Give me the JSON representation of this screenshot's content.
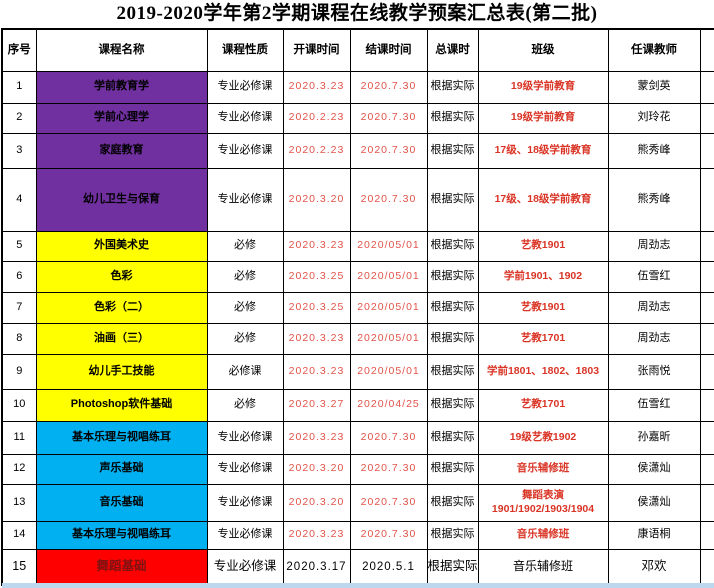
{
  "page_title": "2019-2020学年第2学期课程在线教学预案汇总表(第二批)",
  "table": {
    "columns": [
      "序号",
      "课程名称",
      "课程性质",
      "开课时间",
      "结课时间",
      "总课时",
      "班级",
      "任课教师"
    ],
    "rows": [
      {
        "no": "1",
        "course": "学前教育学",
        "group": "purple",
        "nature": "专业必修课",
        "start": "2020.3.23",
        "end": "2020.7.30",
        "hours": "根据实际",
        "class_name": "19级学前教育",
        "teacher": "蒙剑英"
      },
      {
        "no": "2",
        "course": "学前心理学",
        "group": "purple",
        "nature": "专业必修课",
        "start": "2020.2.23",
        "end": "2020.7.30",
        "hours": "根据实际",
        "class_name": "19级学前教育",
        "teacher": "刘玲花"
      },
      {
        "no": "3",
        "course": "家庭教育",
        "group": "purple",
        "nature": "专业必修课",
        "start": "2020.2.23",
        "end": "2020.7.30",
        "hours": "根据实际",
        "class_name": "17级、18级学前教育",
        "teacher": "熊秀峰"
      },
      {
        "no": "4",
        "course": "幼儿卫生与保育",
        "group": "purple",
        "nature": "专业必修课",
        "start": "2020.3.20",
        "end": "2020.7.30",
        "hours": "根据实际",
        "class_name": "17级、18级学前教育",
        "teacher": "熊秀峰"
      },
      {
        "no": "5",
        "course": "外国美术史",
        "group": "yellow",
        "nature": "必修",
        "start": "2020.3.23",
        "end": "2020/05/01",
        "hours": "根据实际",
        "class_name": "艺教1901",
        "teacher": "周劲志"
      },
      {
        "no": "6",
        "course": "色彩",
        "group": "yellow",
        "nature": "必修",
        "start": "2020.3.25",
        "end": "2020/05/01",
        "hours": "根据实际",
        "class_name": "学前1901、1902",
        "teacher": "伍雪红"
      },
      {
        "no": "7",
        "course": "色彩（二）",
        "group": "yellow",
        "nature": "必修",
        "start": "2020.3.25",
        "end": "2020/05/01",
        "hours": "根据实际",
        "class_name": "艺教1901",
        "teacher": "周劲志"
      },
      {
        "no": "8",
        "course": "油画（三）",
        "group": "yellow",
        "nature": "必修",
        "start": "2020.3.23",
        "end": "2020/05/01",
        "hours": "根据实际",
        "class_name": "艺教1701",
        "teacher": "周劲志"
      },
      {
        "no": "9",
        "course": "幼儿手工技能",
        "group": "yellow",
        "nature": "必修课",
        "start": "2020.3.23",
        "end": "2020/05/01",
        "hours": "根据实际",
        "class_name": "学前1801、1802、1803",
        "teacher": "张雨悦"
      },
      {
        "no": "10",
        "course": "Photoshop软件基础",
        "group": "yellow",
        "nature": "必修",
        "start": "2020.3.27",
        "end": "2020/04/25",
        "hours": "根据实际",
        "class_name": "艺教1701",
        "teacher": "伍雪红"
      },
      {
        "no": "11",
        "course": "基本乐理与视唱练耳",
        "group": "blue",
        "nature": "专业必修课",
        "start": "2020.3.23",
        "end": "2020.7.30",
        "hours": "根据实际",
        "class_name": "19级艺教1902",
        "teacher": "孙嘉昕"
      },
      {
        "no": "12",
        "course": "声乐基础",
        "group": "blue",
        "nature": "专业必修课",
        "start": "2020.3.20",
        "end": "2020.7.30",
        "hours": "根据实际",
        "class_name": "音乐辅修班",
        "teacher": "侯潇灿"
      },
      {
        "no": "13",
        "course": "音乐基础",
        "group": "blue",
        "nature": "专业必修课",
        "start": "2020.3.20",
        "end": "2020.7.30",
        "hours": "根据实际",
        "class_name": "舞蹈表演\n1901/1902/1903/1904",
        "teacher": "侯潇灿"
      },
      {
        "no": "14",
        "course": "基本乐理与视唱练耳",
        "group": "blue",
        "nature": "专业必修课",
        "start": "2020.3.23",
        "end": "2020.7.30",
        "hours": "根据实际",
        "class_name": "音乐辅修班",
        "teacher": "康语桐"
      },
      {
        "no": "15",
        "course": "舞蹈基础",
        "group": "red",
        "nature": "专业必修课",
        "start": "2020.3.17",
        "end": "2020.5.1",
        "hours": "根据实际",
        "class_name": "音乐辅修班",
        "teacher": "邓欢"
      }
    ]
  },
  "colors": {
    "purple": "#7030A0",
    "yellow": "#FFFF00",
    "blue": "#00B0F0",
    "red": "#FF0000",
    "date_red": "#E25349",
    "class_red": "#D93425",
    "dark_red": "#7E1212",
    "black": "#000000",
    "bottom_strip": "#BDD7EE"
  }
}
